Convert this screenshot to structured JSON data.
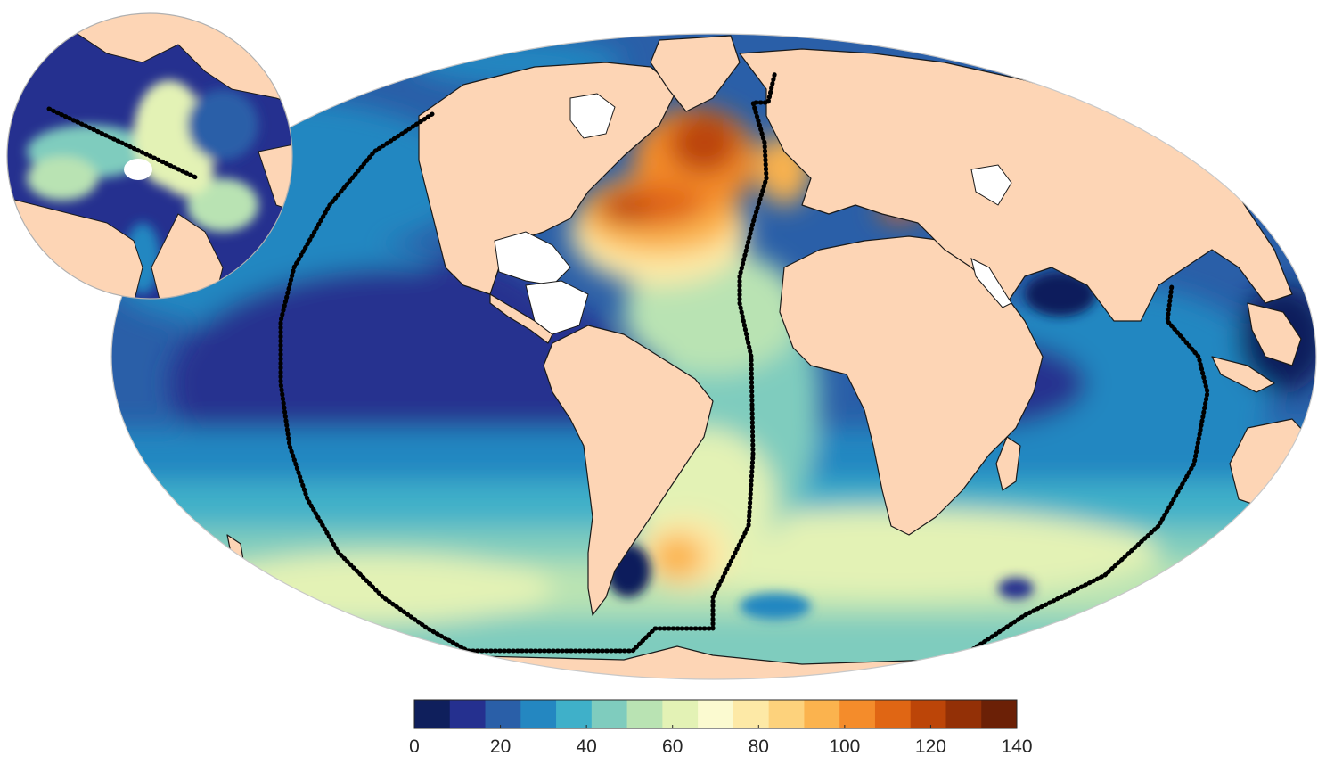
{
  "colors": {
    "land": "#fdd5b5",
    "coast": "#1a1a1a",
    "transect": "#000000",
    "blank_region": "#ffffff"
  },
  "colorbar": {
    "ticks": [
      "0",
      "20",
      "40",
      "60",
      "80",
      "100",
      "120",
      "140"
    ],
    "range": [
      0,
      140
    ],
    "step": 8.75,
    "palette": [
      "#0f1f5c",
      "#25308f",
      "#2a5fa8",
      "#2487c1",
      "#3fb0c9",
      "#7fccbe",
      "#b9e3b3",
      "#e3f2b5",
      "#fbfad0",
      "#fde9a6",
      "#fdd27c",
      "#fbb34e",
      "#f48c2b",
      "#e06614",
      "#bc4508",
      "#933006",
      "#6b2006"
    ]
  },
  "map": {
    "projection": "global ellipse (Mollweide-like)",
    "inset": "north polar stereographic view"
  }
}
